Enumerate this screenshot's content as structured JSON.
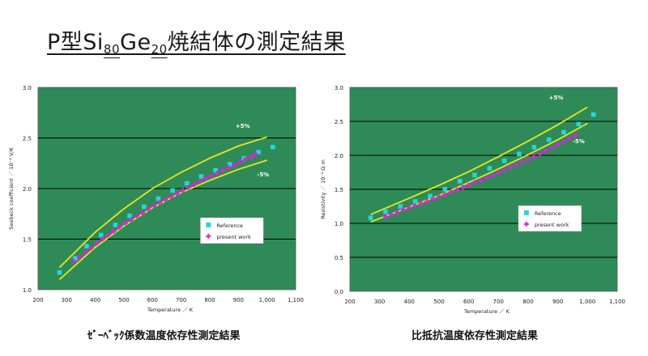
{
  "title": {
    "prefix": "P型Si",
    "sub1": "80",
    "mid": "Ge",
    "sub2": "20",
    "suffix": "焼結体の測定結果"
  },
  "captions": {
    "left": "ｾﾞｰﾍﾞｯｸ係数温度依存性測定結果",
    "right": "比抵抗温度依存性測定結果"
  },
  "colors": {
    "plot_bg": "#2e8b57",
    "grid": "#000000",
    "band": "#e6e61e",
    "reference": "#22d8d8",
    "present": "#e020e0"
  },
  "chart_data": [
    {
      "type": "scatter",
      "xlabel": "Temperature ／ K",
      "ylabel": "Seebeck coefficient ／ 10⁻⁴ V/K",
      "xlim": [
        200,
        1100
      ],
      "ylim": [
        1.0,
        3.0
      ],
      "x_ticks": [
        "200",
        "300",
        "400",
        "500",
        "600",
        "700",
        "800",
        "900",
        "1,000",
        "1,100"
      ],
      "y_ticks": [
        "1.0",
        "1.5",
        "2.0",
        "2.5",
        "3.0"
      ],
      "grid": "horizontal",
      "legend_position": "right-middle",
      "annotations": [
        {
          "text": "+5%",
          "x": 890,
          "y": 2.6
        },
        {
          "text": "-5%",
          "x": 965,
          "y": 2.12
        }
      ],
      "band_curves": {
        "upper": {
          "x": [
            275,
            400,
            500,
            600,
            700,
            800,
            900,
            1000
          ],
          "y": [
            1.22,
            1.57,
            1.8,
            2.0,
            2.16,
            2.3,
            2.42,
            2.51
          ]
        },
        "lower": {
          "x": [
            275,
            400,
            500,
            600,
            700,
            800,
            900,
            1000
          ],
          "y": [
            1.1,
            1.42,
            1.63,
            1.81,
            1.96,
            2.08,
            2.19,
            2.28
          ]
        }
      },
      "series": [
        {
          "name": "Reference",
          "x": [
            275,
            330,
            370,
            420,
            470,
            520,
            570,
            620,
            670,
            720,
            770,
            820,
            870,
            920,
            970,
            1020
          ],
          "y": [
            1.17,
            1.31,
            1.43,
            1.54,
            1.64,
            1.73,
            1.82,
            1.9,
            1.98,
            2.05,
            2.12,
            2.18,
            2.24,
            2.3,
            2.36,
            2.41
          ]
        },
        {
          "name": "present work",
          "x": [
            325,
            345,
            365,
            385,
            405,
            425,
            445,
            465,
            485,
            505,
            525,
            545,
            565,
            585,
            605,
            625,
            645,
            665,
            685,
            705,
            725,
            745,
            765,
            785,
            805,
            825,
            845,
            865,
            885,
            905,
            925,
            945,
            960
          ],
          "y": [
            1.28,
            1.32,
            1.37,
            1.41,
            1.46,
            1.5,
            1.54,
            1.58,
            1.62,
            1.66,
            1.69,
            1.73,
            1.76,
            1.8,
            1.83,
            1.86,
            1.89,
            1.92,
            1.95,
            1.98,
            2.01,
            2.04,
            2.07,
            2.1,
            2.12,
            2.15,
            2.18,
            2.21,
            2.23,
            2.26,
            2.29,
            2.31,
            2.34
          ]
        }
      ]
    },
    {
      "type": "scatter",
      "xlabel": "Temperature ／ K",
      "ylabel": "Resistivity ／ 10⁻⁵ Ω m",
      "xlim": [
        200,
        1100
      ],
      "ylim": [
        0.0,
        3.0
      ],
      "x_ticks": [
        "200",
        "300",
        "400",
        "500",
        "600",
        "700",
        "800",
        "900",
        "1,000",
        "1,100"
      ],
      "y_ticks": [
        "0.0",
        "0.5",
        "1.0",
        "1.5",
        "2.0",
        "2.5",
        "3.0"
      ],
      "grid": "horizontal",
      "legend_position": "right-middle",
      "annotations": [
        {
          "text": "+5%",
          "x": 870,
          "y": 2.82
        },
        {
          "text": "-5%",
          "x": 950,
          "y": 2.18
        }
      ],
      "band_curves": {
        "upper": {
          "x": [
            270,
            400,
            500,
            600,
            700,
            800,
            900,
            1000
          ],
          "y": [
            1.13,
            1.37,
            1.56,
            1.76,
            1.98,
            2.21,
            2.45,
            2.71
          ]
        },
        "lower": {
          "x": [
            270,
            400,
            500,
            600,
            700,
            800,
            900,
            1000
          ],
          "y": [
            1.02,
            1.24,
            1.41,
            1.6,
            1.8,
            2.01,
            2.23,
            2.47
          ]
        }
      },
      "series": [
        {
          "name": "Reference",
          "x": [
            270,
            320,
            370,
            420,
            470,
            520,
            570,
            620,
            670,
            720,
            770,
            820,
            870,
            920,
            970,
            1020
          ],
          "y": [
            1.08,
            1.17,
            1.25,
            1.32,
            1.4,
            1.5,
            1.62,
            1.71,
            1.81,
            1.92,
            2.02,
            2.12,
            2.23,
            2.34,
            2.46,
            2.6
          ]
        },
        {
          "name": "present work",
          "x": [
            320,
            340,
            360,
            380,
            400,
            420,
            440,
            460,
            480,
            500,
            520,
            540,
            560,
            580,
            600,
            620,
            640,
            660,
            680,
            700,
            720,
            740,
            760,
            780,
            800,
            820,
            840,
            860,
            880,
            900,
            920,
            940,
            960
          ],
          "y": [
            1.1,
            1.13,
            1.16,
            1.2,
            1.23,
            1.26,
            1.29,
            1.32,
            1.36,
            1.39,
            1.42,
            1.46,
            1.49,
            1.53,
            1.56,
            1.6,
            1.63,
            1.67,
            1.7,
            1.74,
            1.78,
            1.82,
            1.86,
            1.9,
            1.94,
            1.98,
            2.02,
            2.07,
            2.11,
            2.16,
            2.2,
            2.25,
            2.3
          ]
        }
      ]
    }
  ]
}
